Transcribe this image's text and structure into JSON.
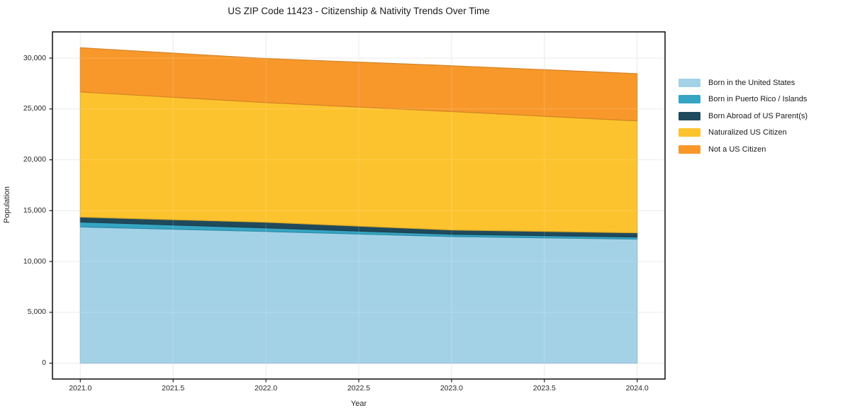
{
  "chart_data": {
    "type": "area",
    "stacked": true,
    "title": "US ZIP Code 11423 - Citizenship & Nativity Trends Over Time",
    "xlabel": "Year",
    "ylabel": "Population",
    "x": [
      2021,
      2022,
      2023,
      2024
    ],
    "series": [
      {
        "name": "Born in the United States",
        "color": "#A3D2E7",
        "values": [
          13400,
          12950,
          12450,
          12200
        ]
      },
      {
        "name": "Born in Puerto Rico / Islands",
        "color": "#35A5C3",
        "values": [
          480,
          350,
          230,
          210
        ]
      },
      {
        "name": "Born Abroad of US Parent(s)",
        "color": "#1F4A5C",
        "values": [
          490,
          560,
          420,
          410
        ]
      },
      {
        "name": "Naturalized US Citizen",
        "color": "#FDC32E",
        "values": [
          12300,
          11770,
          11650,
          11000
        ]
      },
      {
        "name": "Not a US Citizen",
        "color": "#F8982B",
        "values": [
          4350,
          4330,
          4500,
          4650
        ]
      }
    ],
    "xlim": [
      2020.85,
      2024.15
    ],
    "ylim": [
      -1560,
      32580
    ],
    "x_ticks": [
      2021.0,
      2021.5,
      2022.0,
      2022.5,
      2023.0,
      2023.5,
      2024.0
    ],
    "x_tick_labels": [
      "2021.0",
      "2021.5",
      "2022.0",
      "2022.5",
      "2023.0",
      "2023.5",
      "2024.0"
    ],
    "y_ticks": [
      0,
      5000,
      10000,
      15000,
      20000,
      25000,
      30000
    ],
    "y_tick_labels": [
      "0",
      "5,000",
      "10,000",
      "15,000",
      "20,000",
      "25,000",
      "30,000"
    ],
    "grid": true,
    "legend_position": "right",
    "colors": {
      "background": "#ffffff",
      "spine": "#1a1a1a",
      "gridline": "#e7e7e7",
      "tick_text": "#262626"
    }
  }
}
